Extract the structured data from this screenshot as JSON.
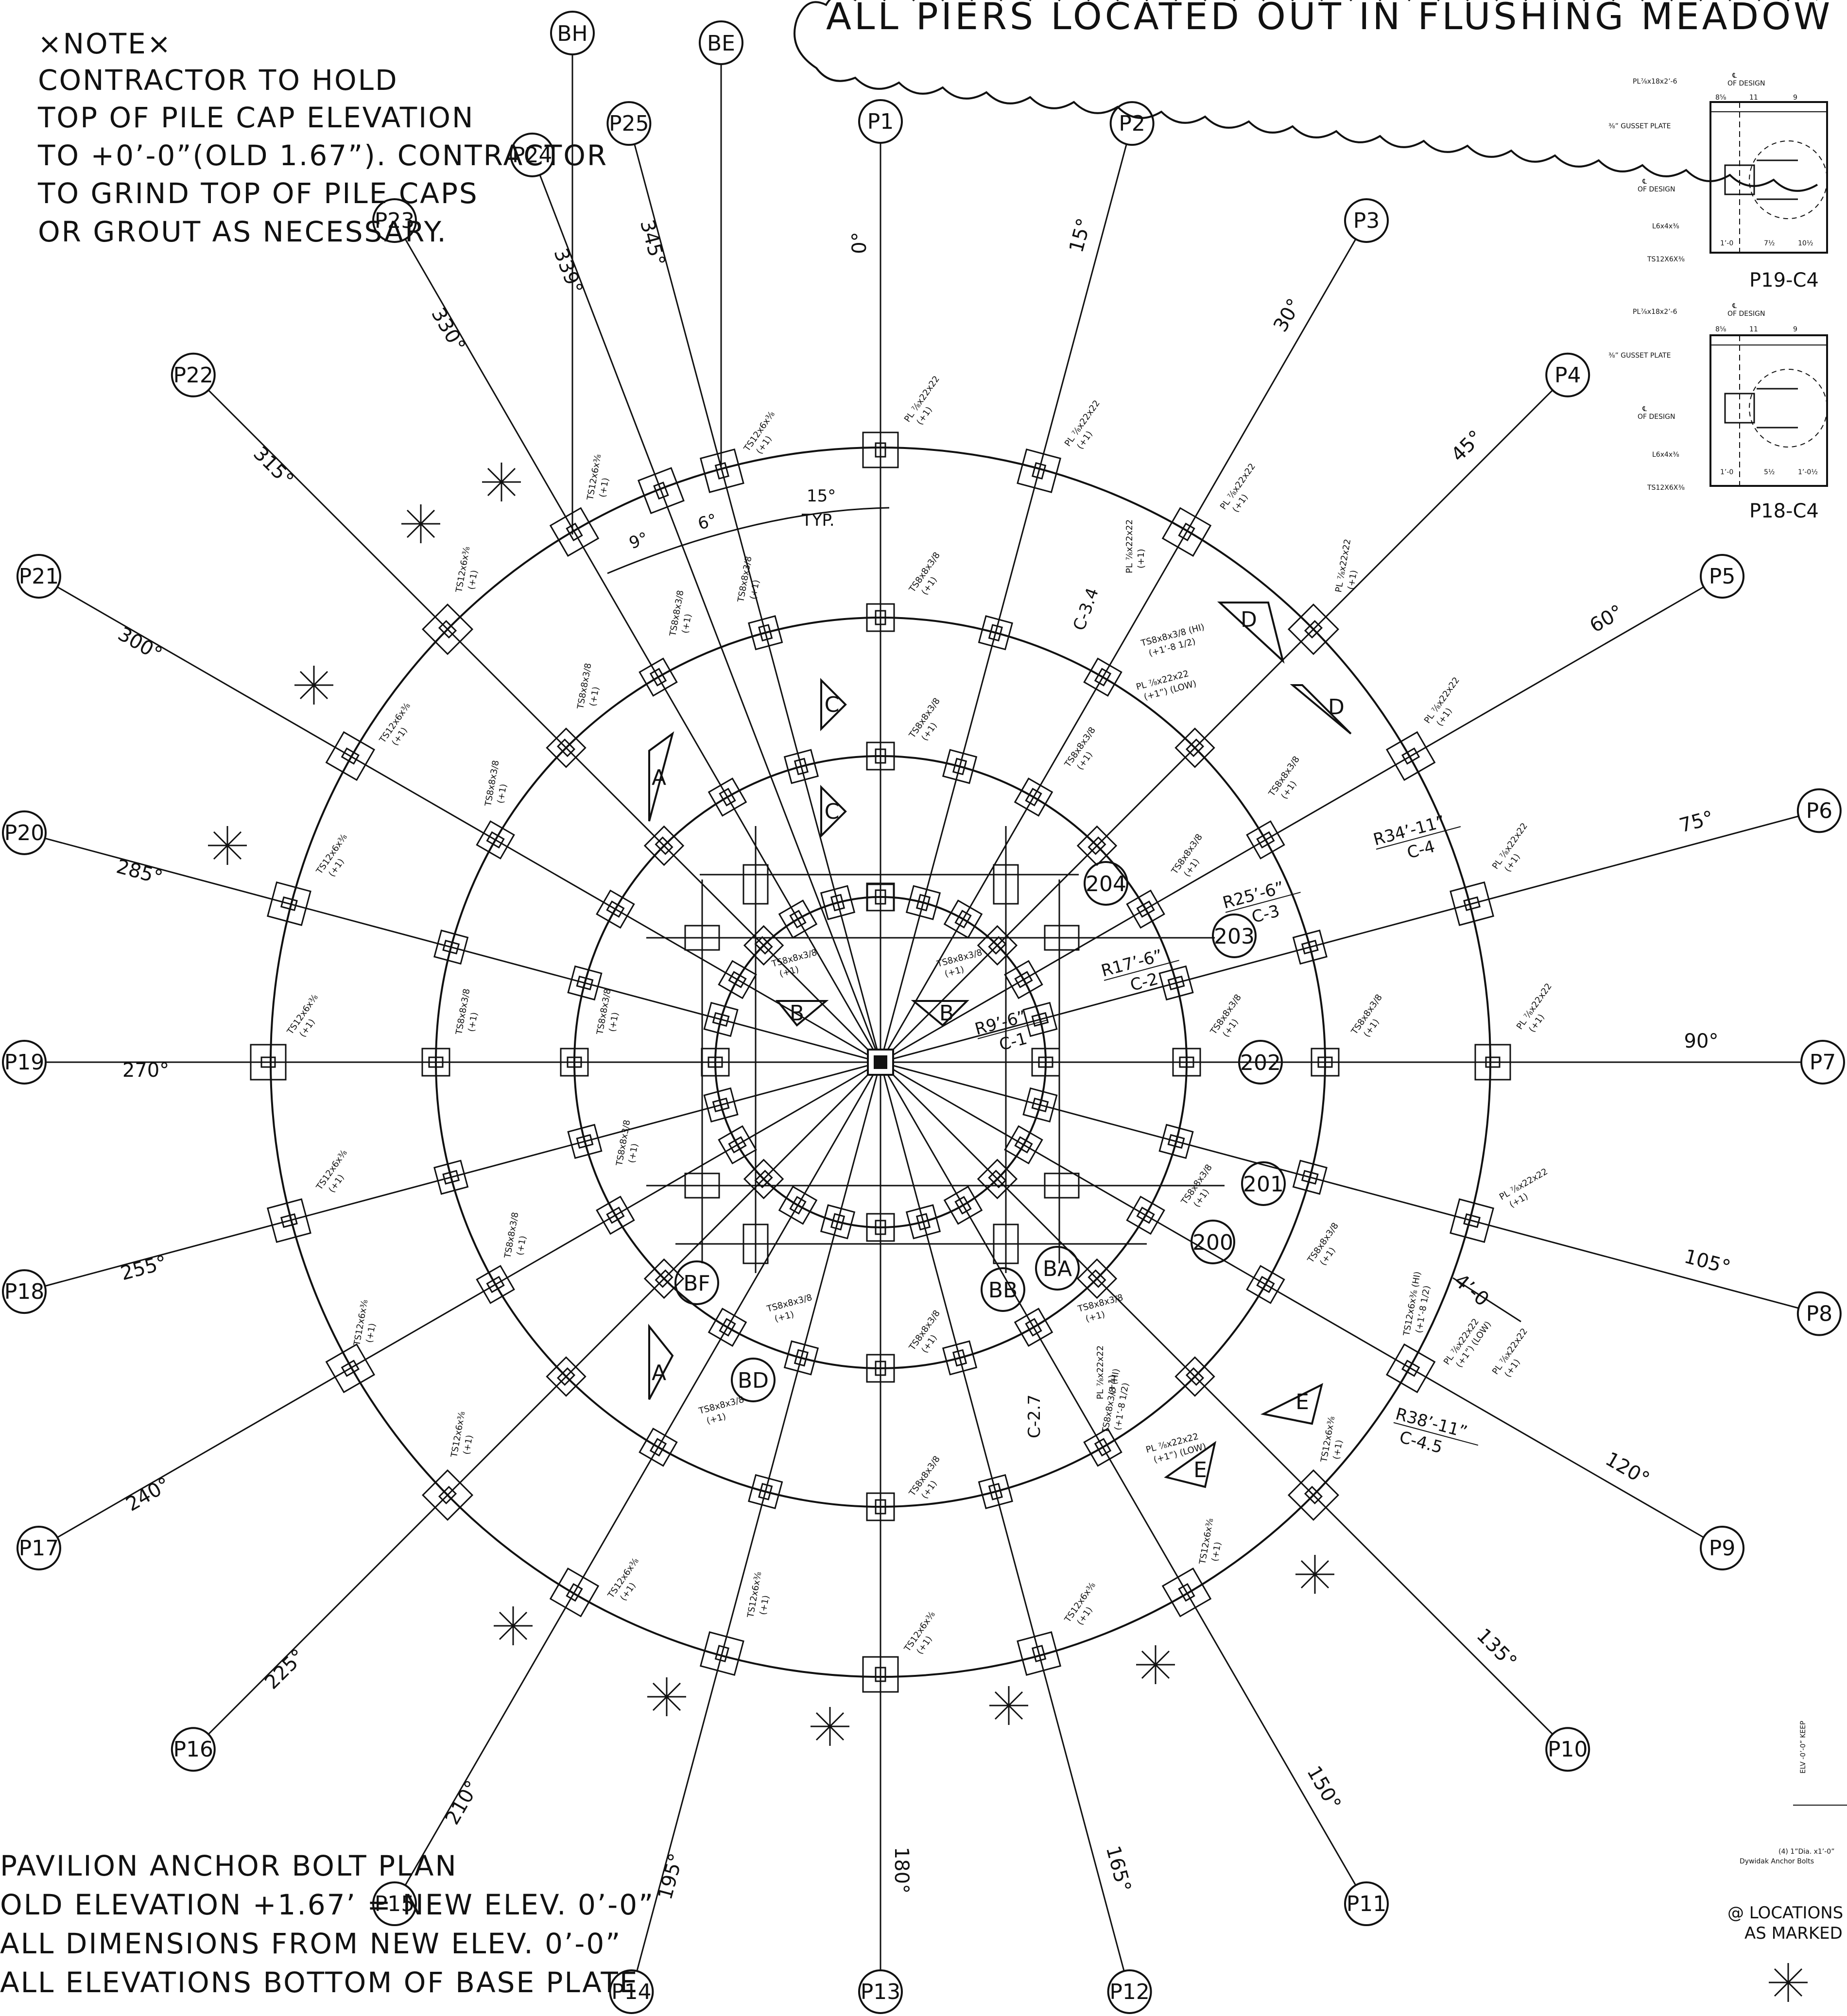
{
  "cloud_note": "ALL PIERS LOCATED OUT IN FLUSHING MEADOW BA",
  "note": {
    "title": "×NOTE×",
    "lines": [
      "CONTRACTOR TO HOLD",
      "TOP OF PILE CAP ELEVATION",
      "TO +0’-0”(OLD 1.67”). CONTRACTOR",
      "TO GRIND TOP OF PILE CAPS",
      "OR GROUT AS NECESSARY."
    ]
  },
  "plan_title": {
    "title": "PAVILION ANCHOR BOLT PLAN",
    "lines": [
      "OLD ELEVATION +1.67’ = NEW ELEV. 0’-0”",
      "ALL DIMENSIONS FROM NEW ELEV. 0’-0”",
      "ALL ELEVATIONS BOTTOM OF BASE PLATE"
    ]
  },
  "piers": [
    {
      "label": "P1",
      "angle": "0°",
      "deg": 0
    },
    {
      "label": "P2",
      "angle": "15°",
      "deg": 15
    },
    {
      "label": "P3",
      "angle": "30°",
      "deg": 30
    },
    {
      "label": "P4",
      "angle": "45°",
      "deg": 45
    },
    {
      "label": "P5",
      "angle": "60°",
      "deg": 60
    },
    {
      "label": "P6",
      "angle": "75°",
      "deg": 75
    },
    {
      "label": "P7",
      "angle": "90°",
      "deg": 90
    },
    {
      "label": "P8",
      "angle": "105°",
      "deg": 105
    },
    {
      "label": "P9",
      "angle": "120°",
      "deg": 120
    },
    {
      "label": "P10",
      "angle": "135°",
      "deg": 135
    },
    {
      "label": "P11",
      "angle": "150°",
      "deg": 150
    },
    {
      "label": "P12",
      "angle": "165°",
      "deg": 165
    },
    {
      "label": "P13",
      "angle": "180°",
      "deg": 180
    },
    {
      "label": "P14",
      "angle": "195°",
      "deg": 195
    },
    {
      "label": "P15",
      "angle": "210°",
      "deg": 210
    },
    {
      "label": "P16",
      "angle": "225°",
      "deg": 225
    },
    {
      "label": "P17",
      "angle": "240°",
      "deg": 240
    },
    {
      "label": "P18",
      "angle": "255°",
      "deg": 255
    },
    {
      "label": "P19",
      "angle": "270°",
      "deg": 270
    },
    {
      "label": "P20",
      "angle": "285°",
      "deg": 285
    },
    {
      "label": "P21",
      "angle": "300°",
      "deg": 300
    },
    {
      "label": "P22",
      "angle": "315°",
      "deg": 315
    },
    {
      "label": "P23",
      "angle": "330°",
      "deg": 330
    },
    {
      "label": "P24",
      "angle": "339°",
      "deg": 339
    },
    {
      "label": "P25",
      "angle": "345°",
      "deg": 345
    }
  ],
  "bubbles": {
    "BH": "BH",
    "BE": "BE",
    "BF": "BF",
    "BD": "BD",
    "BB": "BB",
    "BA": "BA",
    "g200": "200",
    "g201": "201",
    "g202": "202",
    "g203": "203",
    "g204": "204"
  },
  "rings": [
    {
      "radius": "R9’-6”",
      "grid": "C-1"
    },
    {
      "radius": "R17’-6”",
      "grid": "C-2"
    },
    {
      "radius": "R25’-6”",
      "grid": "C-3"
    },
    {
      "radius": "R34’-11”",
      "grid": "C-4"
    },
    {
      "radius": "R38’-11”",
      "grid": "C-4.5"
    }
  ],
  "grid_tags": {
    "c34": "C-3.4",
    "c27": "C-2.7"
  },
  "dims": {
    "typ_angle": "15°",
    "typ": "TYP.",
    "a9": "9°",
    "a6": "6°",
    "four_o": "4’-0"
  },
  "sections": {
    "A": "A",
    "B": "B",
    "C": "C",
    "D": "D",
    "E": "E"
  },
  "members": {
    "ts12": "TS12x6x⅜",
    "ts8": "TS8x8x3/8",
    "pl": "PL ⅞x22x22",
    "plus1": "(+1)",
    "ts8_hi": "TS8x8x3/8 (HI)",
    "hi_elev": "(+1’-8 1/2)",
    "pl_low": "PL ⅞x22x22",
    "low_elev": "(+1”) (LOW)",
    "ts12_hi": "TS12x6x⅜ (HI)"
  },
  "details": {
    "d1": {
      "title": "P19-C4",
      "top_plate": "PL⅞x18x2’-6",
      "cl": "℄",
      "of_design": "OF DESIGN",
      "gusset": "⅜” GUSSET PLATE",
      "angle": "L6x4x⅜",
      "tube": "TS12X6X⅜",
      "d_a": "8⅝",
      "d_b": "11",
      "d_c": "9",
      "d_d": "1’-0",
      "d_e": "7½",
      "d_f": "10½"
    },
    "d2": {
      "title": "P18-C4",
      "top_plate": "PL⅞x18x2’-6",
      "cl": "℄",
      "of_design": "OF DESIGN",
      "gusset": "⅜” GUSSET PLATE",
      "angle": "L6x4x⅜",
      "tube": "TS12X6X⅜",
      "d_a": "8⅝",
      "d_b": "11",
      "d_c": "9",
      "d_d": "1’-0",
      "d_e": "5½",
      "d_f": "1’-0½"
    }
  },
  "side_notes": {
    "elev": "ELV -0’-0” KEEP",
    "bolts1": "(4) 1”Dia. x1’-0”",
    "bolts2": "Dywidak Anchor Bolts",
    "loc1": "@ LOCATIONS",
    "loc2": "AS MARKED"
  }
}
